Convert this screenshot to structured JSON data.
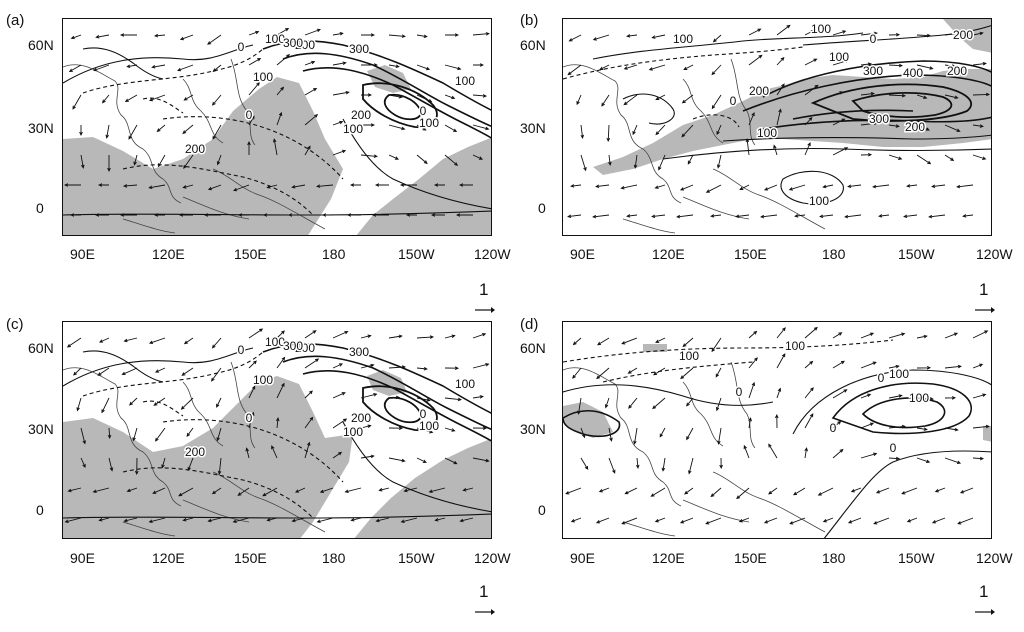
{
  "x_labels": [
    "90E",
    "120E",
    "150E",
    "180",
    "150W",
    "120W"
  ],
  "y_labels": [
    "60N",
    "30N",
    "0"
  ],
  "ref_vector": "1",
  "colors": {
    "shade": "#b8b8b8",
    "line": "#111111",
    "land": "#444444"
  },
  "panels": [
    {
      "label": "(a)",
      "contours": [
        "0",
        "100",
        "200",
        "300",
        "100",
        "100",
        "200",
        "300",
        "200",
        "100",
        "100",
        "0",
        "0"
      ]
    },
    {
      "label": "(b)",
      "contours": [
        "100",
        "100",
        "0",
        "200",
        "100",
        "300",
        "400",
        "200",
        "300",
        "200",
        "100",
        "200",
        "100",
        "0"
      ]
    },
    {
      "label": "(c)",
      "contours": [
        "0",
        "100",
        "200",
        "300",
        "100",
        "100",
        "200",
        "300",
        "200",
        "100",
        "100",
        "0",
        "0"
      ]
    },
    {
      "label": "(d)",
      "contours": [
        "100",
        "100",
        "0",
        "0",
        "100",
        "100",
        "0",
        "0"
      ]
    }
  ]
}
